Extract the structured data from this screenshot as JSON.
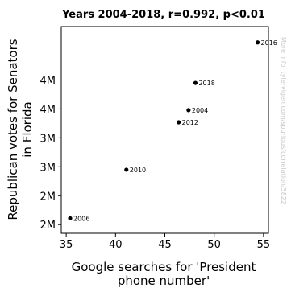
{
  "chart_data": {
    "type": "scatter",
    "title": "Years 2004-2018, r=0.992, p<0.01",
    "xlabel_lines": [
      "Google searches for 'President",
      "phone number'"
    ],
    "ylabel_lines": [
      "Republican votes for Senators",
      "in Florida"
    ],
    "xlim": [
      34.5,
      55.5
    ],
    "ylim": [
      1350000,
      4925000
    ],
    "xticks": [
      {
        "value": 35,
        "label": "35"
      },
      {
        "value": 40,
        "label": "40"
      },
      {
        "value": 45,
        "label": "45"
      },
      {
        "value": 50,
        "label": "50"
      },
      {
        "value": 55,
        "label": "55"
      }
    ],
    "yticks": [
      {
        "value": 1500000,
        "label": "2M"
      },
      {
        "value": 2000000,
        "label": "2M"
      },
      {
        "value": 2500000,
        "label": "3M"
      },
      {
        "value": 3000000,
        "label": "3M"
      },
      {
        "value": 3500000,
        "label": "4M"
      },
      {
        "value": 4000000,
        "label": "4M"
      }
    ],
    "points": [
      {
        "label": "2006",
        "x": 35.4,
        "y": 1610000
      },
      {
        "label": "2010",
        "x": 41.1,
        "y": 2450000
      },
      {
        "label": "2012",
        "x": 46.4,
        "y": 3270000
      },
      {
        "label": "2004",
        "x": 47.4,
        "y": 3480000
      },
      {
        "label": "2018",
        "x": 48.1,
        "y": 3950000
      },
      {
        "label": "2016",
        "x": 54.4,
        "y": 4650000
      }
    ],
    "watermark": "More info: tylervigen.com/spurious/correlation/5822"
  }
}
